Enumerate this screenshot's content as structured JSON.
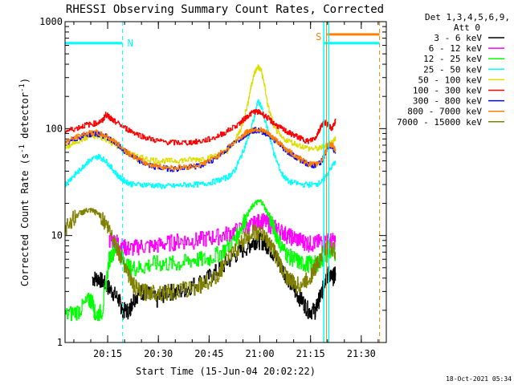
{
  "chart_data": {
    "type": "line",
    "title": "RHESSI Observing Summary Count Rates, Corrected",
    "xlabel": "Start Time (15-Jun-04 20:02:22)",
    "ylabel_main": "Corrected Count Rate (s",
    "ylabel_sup1": "-1",
    "ylabel_mid": " detector",
    "ylabel_sup2": "-1",
    "ylabel_end": ")",
    "y_scale": "log",
    "ylim": [
      1,
      1000
    ],
    "xlim_minutes": [
      0,
      95
    ],
    "x_ticks": [
      {
        "label": "20:15",
        "m": 12.6
      },
      {
        "label": "20:30",
        "m": 27.6
      },
      {
        "label": "20:45",
        "m": 42.6
      },
      {
        "label": "21:00",
        "m": 57.6
      },
      {
        "label": "21:15",
        "m": 72.6
      },
      {
        "label": "21:30",
        "m": 87.6
      }
    ],
    "y_ticks": [
      {
        "label": "1",
        "v": 1
      },
      {
        "label": "10",
        "v": 10
      },
      {
        "label": "100",
        "v": 100
      },
      {
        "label": "1000",
        "v": 1000
      }
    ],
    "legend_header": [
      "Det 1,3,4,5,6,9,",
      "Att 0"
    ],
    "legend_placement": "right",
    "flag_labels": {
      "night": "N",
      "saa": "S"
    },
    "series": [
      {
        "name": "3 - 6 keV",
        "color": "#000000",
        "m": [
          8,
          10,
          12,
          14,
          16,
          17,
          19,
          20,
          22,
          24,
          27,
          30,
          34,
          38,
          42,
          46,
          50,
          54,
          56,
          58,
          60,
          62,
          64,
          66,
          68,
          70,
          72,
          74,
          75,
          76,
          77,
          78,
          79,
          80
        ],
        "v": [
          4,
          4,
          3.5,
          3,
          2.5,
          2,
          2,
          2.5,
          3,
          3,
          2.5,
          3,
          3,
          3.5,
          4,
          5,
          6.5,
          8,
          9,
          9,
          8,
          6.5,
          5,
          4,
          3,
          2.5,
          2,
          2,
          2.5,
          3,
          4,
          4.5,
          4,
          4.5
        ]
      },
      {
        "name": "6 - 12 keV",
        "color": "#ff00ff",
        "m": [
          13,
          15,
          17,
          19,
          22,
          26,
          30,
          34,
          38,
          42,
          46,
          50,
          54,
          56,
          58,
          60,
          62,
          64,
          66,
          68,
          70,
          72,
          74,
          76,
          78,
          80
        ],
        "v": [
          9,
          9,
          8,
          7.5,
          8,
          8,
          8.5,
          9,
          9,
          9.5,
          10,
          11,
          12,
          13,
          14,
          13,
          12,
          11,
          10,
          9.5,
          9,
          8.5,
          8.5,
          9,
          9,
          9
        ]
      },
      {
        "name": "12 - 25 keV",
        "color": "#00ff00",
        "m": [
          0,
          4,
          7,
          8,
          9,
          11,
          13,
          15,
          17,
          19,
          22,
          26,
          30,
          34,
          38,
          42,
          46,
          50,
          52,
          54,
          56,
          58,
          60,
          62,
          64,
          66,
          68,
          70,
          72,
          74,
          76,
          78,
          80
        ],
        "v": [
          1.8,
          2,
          2.5,
          2.5,
          1.8,
          2,
          6,
          8,
          6,
          5,
          5,
          5.5,
          5.5,
          5.5,
          6,
          6,
          7,
          9,
          12,
          16,
          20,
          21,
          16,
          11,
          8,
          6.5,
          6,
          5.5,
          5.5,
          5.5,
          6,
          7,
          6.5
        ]
      },
      {
        "name": "25 - 50 keV",
        "color": "#00ffff",
        "m": [
          0,
          2,
          4,
          6,
          8,
          10,
          12,
          14,
          16,
          18,
          20,
          24,
          28,
          32,
          36,
          40,
          44,
          48,
          50,
          52,
          54,
          56,
          57,
          58,
          60,
          62,
          64,
          66,
          70,
          74,
          76,
          78,
          80
        ],
        "v": [
          30,
          35,
          40,
          47,
          52,
          55,
          50,
          42,
          35,
          32,
          30,
          30,
          29,
          29,
          30,
          30,
          32,
          35,
          40,
          55,
          80,
          130,
          180,
          160,
          95,
          55,
          38,
          32,
          30,
          30,
          32,
          40,
          50
        ]
      },
      {
        "name": "50 - 100 keV",
        "color": "#dddd00",
        "m": [
          0,
          3,
          6,
          9,
          12,
          15,
          18,
          21,
          24,
          28,
          32,
          36,
          40,
          44,
          48,
          50,
          52,
          54,
          55,
          56,
          57,
          58,
          59,
          60,
          62,
          64,
          68,
          72,
          75,
          77,
          79,
          80
        ],
        "v": [
          65,
          75,
          82,
          85,
          80,
          70,
          60,
          55,
          52,
          50,
          50,
          51,
          52,
          55,
          62,
          75,
          100,
          170,
          250,
          330,
          380,
          350,
          250,
          160,
          100,
          82,
          72,
          65,
          65,
          70,
          75,
          80
        ]
      },
      {
        "name": "100 - 300 keV",
        "color": "#ff0000",
        "m": [
          0,
          3,
          6,
          9,
          11,
          12,
          13,
          14,
          15,
          18,
          21,
          24,
          28,
          32,
          36,
          40,
          44,
          48,
          52,
          54,
          56,
          58,
          60,
          62,
          64,
          66,
          68,
          70,
          72,
          74,
          75,
          76,
          77,
          78,
          79,
          80
        ],
        "v": [
          95,
          100,
          108,
          112,
          118,
          135,
          130,
          120,
          115,
          100,
          90,
          82,
          76,
          74,
          74,
          76,
          82,
          95,
          115,
          132,
          145,
          140,
          125,
          110,
          100,
          92,
          86,
          80,
          76,
          82,
          95,
          110,
          115,
          105,
          100,
          120
        ]
      },
      {
        "name": "300 - 800 keV",
        "color": "#0000ff",
        "m": [
          0,
          3,
          6,
          9,
          12,
          15,
          18,
          21,
          24,
          28,
          32,
          36,
          40,
          44,
          48,
          52,
          54,
          56,
          58,
          60,
          62,
          64,
          66,
          68,
          70,
          72,
          74,
          76,
          77,
          78,
          79,
          80
        ],
        "v": [
          72,
          80,
          88,
          90,
          85,
          72,
          60,
          52,
          46,
          43,
          42,
          43,
          45,
          52,
          65,
          82,
          92,
          97,
          95,
          88,
          78,
          68,
          60,
          55,
          50,
          46,
          45,
          50,
          60,
          70,
          68,
          60
        ]
      },
      {
        "name": "800 - 7000 keV",
        "color": "#ff8000",
        "m": [
          0,
          3,
          6,
          9,
          12,
          15,
          18,
          21,
          24,
          28,
          32,
          36,
          40,
          44,
          48,
          52,
          54,
          56,
          58,
          60,
          62,
          64,
          66,
          68,
          70,
          72,
          74,
          76,
          77,
          78,
          79,
          80
        ],
        "v": [
          75,
          82,
          90,
          92,
          86,
          74,
          62,
          53,
          47,
          44,
          43,
          44,
          46,
          53,
          66,
          84,
          94,
          99,
          97,
          90,
          80,
          70,
          62,
          56,
          51,
          47,
          46,
          51,
          62,
          72,
          70,
          62
        ]
      },
      {
        "name": "7000 - 15000 keV",
        "color": "#808000",
        "m": [
          0,
          2,
          4,
          6,
          8,
          10,
          12,
          14,
          16,
          18,
          20,
          22,
          25,
          28,
          32,
          36,
          40,
          44,
          48,
          52,
          54,
          56,
          58,
          60,
          62,
          64,
          66,
          68,
          70,
          72,
          74,
          76,
          78,
          80
        ],
        "v": [
          12,
          14,
          16,
          17,
          17,
          16,
          13,
          10,
          7,
          5,
          3.5,
          3,
          3,
          3,
          3,
          3.2,
          3.5,
          4,
          6,
          8.5,
          10,
          11,
          10.5,
          9,
          7,
          5,
          4,
          3.5,
          3.5,
          4,
          5,
          7,
          8,
          7
        ]
      }
    ],
    "annotations": {
      "night_flag": {
        "m_start": 0,
        "m_end": 17,
        "m_marker": 17
      },
      "saa_flag": {
        "m_start": 76.5,
        "m_end": 93,
        "m_marker": 76.5
      },
      "attenuator_marker_m": 78,
      "end_marker_m": 93
    }
  },
  "footer": {
    "timestamp": "18-Oct-2021 05:34"
  }
}
